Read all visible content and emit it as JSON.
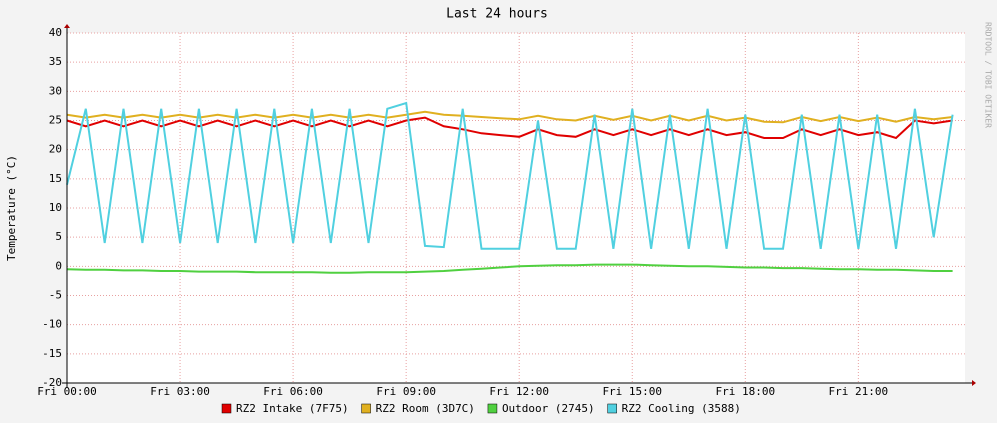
{
  "chart_data": {
    "type": "line",
    "title": "Last 24 hours",
    "y_label": "Temperature (°C)",
    "watermark": "RRDTOOL / TOBI OETIKER",
    "x": [
      0,
      0.5,
      1,
      1.5,
      2,
      2.5,
      3,
      3.5,
      4,
      4.5,
      5,
      5.5,
      6,
      6.5,
      7,
      7.5,
      8,
      8.5,
      9,
      9.5,
      10,
      10.5,
      11,
      11.5,
      12,
      12.5,
      13,
      13.5,
      14,
      14.5,
      15,
      15.5,
      16,
      16.5,
      17,
      17.5,
      18,
      18.5,
      19,
      19.5,
      20,
      20.5,
      21,
      21.5,
      22,
      22.5,
      23,
      23.5
    ],
    "xlim": [
      0,
      23.83
    ],
    "xticks": [
      {
        "value": 0,
        "label": "Fri 00:00"
      },
      {
        "value": 3,
        "label": "Fri 03:00"
      },
      {
        "value": 6,
        "label": "Fri 06:00"
      },
      {
        "value": 9,
        "label": "Fri 09:00"
      },
      {
        "value": 12,
        "label": "Fri 12:00"
      },
      {
        "value": 15,
        "label": "Fri 15:00"
      },
      {
        "value": 18,
        "label": "Fri 18:00"
      },
      {
        "value": 21,
        "label": "Fri 21:00"
      }
    ],
    "ylim": [
      -20,
      40
    ],
    "yticks": [
      -20,
      -15,
      -10,
      -5,
      0,
      5,
      10,
      15,
      20,
      25,
      30,
      35,
      40
    ],
    "grid": true,
    "series": [
      {
        "name": "RZ2 Intake (7F75)",
        "color": "#e00000",
        "values": [
          25,
          24,
          25,
          24,
          25,
          24,
          25,
          24,
          25,
          24,
          25,
          24,
          25,
          24,
          25,
          24,
          25,
          24,
          25,
          25.5,
          24,
          23.5,
          22.8,
          22.5,
          22.2,
          23.5,
          22.5,
          22.2,
          23.5,
          22.5,
          23.5,
          22.5,
          23.5,
          22.5,
          23.5,
          22.5,
          23,
          22,
          22,
          23.5,
          22.5,
          23.5,
          22.5,
          23,
          22,
          25,
          24.5,
          25
        ]
      },
      {
        "name": "RZ2 Room (3D7C)",
        "color": "#e0b020",
        "values": [
          26,
          25.5,
          26,
          25.5,
          26,
          25.5,
          26,
          25.5,
          26,
          25.5,
          26,
          25.5,
          26,
          25.5,
          26,
          25.5,
          26,
          25.5,
          26,
          26.5,
          26,
          25.8,
          25.6,
          25.4,
          25.2,
          25.8,
          25.2,
          25,
          25.8,
          25.1,
          25.8,
          25,
          25.8,
          25,
          25.8,
          25,
          25.5,
          24.8,
          24.7,
          25.6,
          24.9,
          25.6,
          24.9,
          25.5,
          24.8,
          25.6,
          25.2,
          25.6
        ]
      },
      {
        "name": "Outdoor (2745)",
        "color": "#50d040",
        "values": [
          -0.5,
          -0.6,
          -0.6,
          -0.7,
          -0.7,
          -0.8,
          -0.8,
          -0.9,
          -0.9,
          -0.9,
          -1,
          -1,
          -1,
          -1,
          -1.1,
          -1.1,
          -1,
          -1,
          -1,
          -0.9,
          -0.8,
          -0.6,
          -0.4,
          -0.2,
          0,
          0.1,
          0.2,
          0.2,
          0.3,
          0.3,
          0.3,
          0.2,
          0.1,
          0,
          0,
          -0.1,
          -0.2,
          -0.2,
          -0.3,
          -0.3,
          -0.4,
          -0.5,
          -0.5,
          -0.6,
          -0.6,
          -0.7,
          -0.8,
          -0.8
        ]
      },
      {
        "name": "RZ2 Cooling (3588)",
        "color": "#50d0e0",
        "values": [
          14,
          27,
          4,
          27,
          4,
          27,
          4,
          27,
          4,
          27,
          4,
          27,
          4,
          27,
          4,
          27,
          4,
          27,
          28,
          3.5,
          3.3,
          27,
          3,
          3,
          3,
          25,
          3,
          3,
          26,
          3,
          27,
          3,
          26,
          3,
          27,
          3,
          26,
          3,
          3,
          26,
          3,
          26,
          3,
          26,
          3,
          27,
          5,
          26
        ]
      }
    ]
  }
}
